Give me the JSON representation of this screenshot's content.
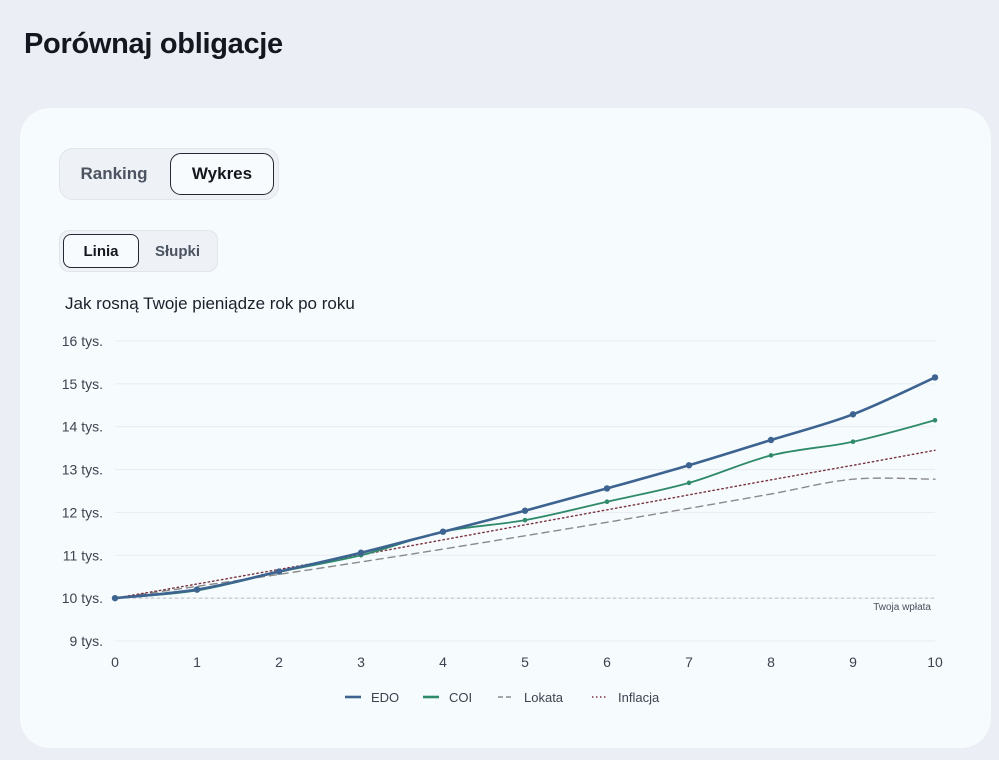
{
  "page_title": "Porównaj obligacje",
  "view_tabs": {
    "ranking": "Ranking",
    "wykres": "Wykres",
    "active": "Wykres"
  },
  "type_tabs": {
    "linia": "Linia",
    "slupki": "Słupki",
    "active": "Linia"
  },
  "chart_data": {
    "type": "line",
    "title": "Jak rosną Twoje pieniądze rok po roku",
    "x": [
      0,
      1,
      2,
      3,
      4,
      5,
      6,
      7,
      8,
      9,
      10
    ],
    "xlim": [
      0,
      10
    ],
    "ylim": [
      9000,
      16000
    ],
    "y_ticks": [
      9000,
      10000,
      11000,
      12000,
      13000,
      14000,
      15000,
      16000
    ],
    "y_tick_labels": [
      "9 tys.",
      "10 tys.",
      "11 tys.",
      "12 tys.",
      "13 tys.",
      "14 tys.",
      "15 tys.",
      "16 tys."
    ],
    "grid": true,
    "legend_position": "bottom",
    "series": [
      {
        "name": "EDO",
        "color": "#3d6391",
        "style": "solid",
        "markers": true,
        "values": [
          10000,
          10200,
          10620,
          11060,
          11550,
          12040,
          12560,
          13100,
          13690,
          14290,
          15150
        ]
      },
      {
        "name": "COI",
        "color": "#2f8a6a",
        "style": "solid",
        "markers": true,
        "values": [
          10000,
          10180,
          10610,
          11000,
          11550,
          11820,
          12250,
          12690,
          13330,
          13650,
          14150
        ]
      },
      {
        "name": "Lokata",
        "color": "#8a8a8a",
        "style": "dashed",
        "markers": false,
        "values": [
          10000,
          10275,
          10555,
          10845,
          11145,
          11455,
          11770,
          12095,
          12430,
          12775,
          12775
        ]
      },
      {
        "name": "Inflacja",
        "color": "#7a3340",
        "style": "dotted",
        "markers": false,
        "values": [
          10000,
          10330,
          10670,
          11010,
          11360,
          11710,
          12060,
          12410,
          12760,
          13100,
          13450
        ]
      }
    ],
    "reference_line": {
      "value": 10000,
      "label": "Twoja wpłata"
    }
  }
}
